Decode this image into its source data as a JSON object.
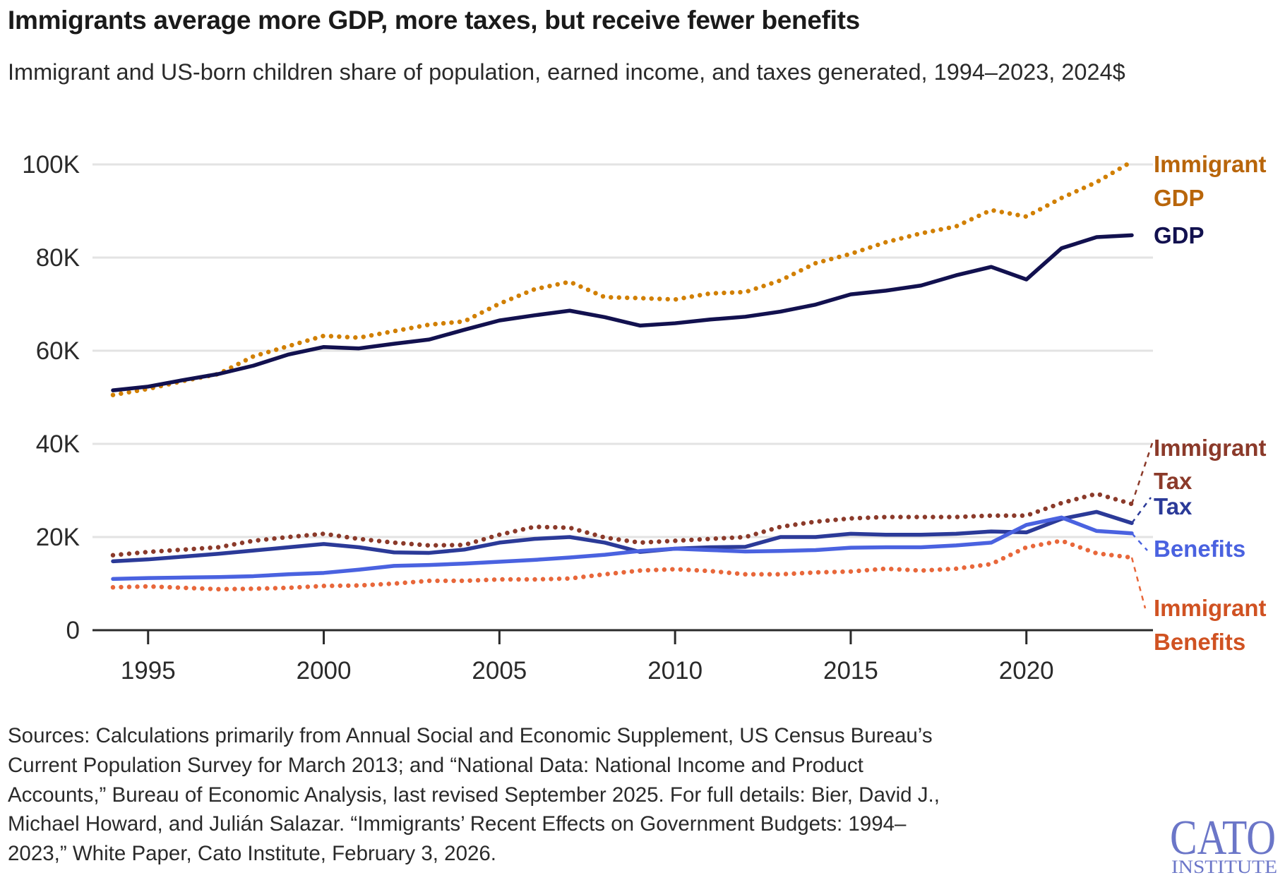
{
  "title": "Immigrants average more GDP, more taxes, but receive fewer benefits",
  "subtitle": "Immigrant and US-born children share of population, earned income, and taxes generated, 1994–2023, 2024$",
  "chart_data": {
    "type": "line",
    "title": "Immigrants average more GDP, more taxes, but receive fewer benefits",
    "subtitle": "Immigrant and US-born children share of population, earned income, and taxes generated, 1994–2023, 2024$",
    "xlabel": "",
    "ylabel": "",
    "x": [
      1994,
      1995,
      1996,
      1997,
      1998,
      1999,
      2000,
      2001,
      2002,
      2003,
      2004,
      2005,
      2006,
      2007,
      2008,
      2009,
      2010,
      2011,
      2012,
      2013,
      2014,
      2015,
      2016,
      2017,
      2018,
      2019,
      2020,
      2021,
      2022,
      2023
    ],
    "xlim": [
      1994,
      2023
    ],
    "ylim": [
      0,
      100000
    ],
    "x_ticks": [
      "1995",
      "2000",
      "2005",
      "2010",
      "2015",
      "2020"
    ],
    "y_ticks": [
      {
        "value": 0,
        "label": "0"
      },
      {
        "value": 20000,
        "label": "20K"
      },
      {
        "value": 40000,
        "label": "40K"
      },
      {
        "value": 60000,
        "label": "60K"
      },
      {
        "value": 80000,
        "label": "80K"
      },
      {
        "value": 100000,
        "label": "100K"
      }
    ],
    "grid": true,
    "legend": "direct labels at right",
    "series": [
      {
        "name": "Immigrant GDP",
        "label_lines": [
          "Immigrant",
          "GDP"
        ],
        "color": "#d17f00",
        "label_color": "#b8650a",
        "style": "dotted",
        "values": [
          50500,
          51800,
          53500,
          55000,
          58800,
          61000,
          63200,
          62800,
          64200,
          65600,
          66300,
          70100,
          73200,
          74800,
          71500,
          71300,
          71000,
          72300,
          72600,
          75100,
          78800,
          80800,
          83300,
          85200,
          86700,
          90200,
          88800,
          92800,
          96200,
          100600
        ]
      },
      {
        "name": "GDP",
        "label_lines": [
          "GDP"
        ],
        "color": "#12114f",
        "label_color": "#12114f",
        "style": "solid",
        "values": [
          51500,
          52300,
          53700,
          55000,
          56800,
          59200,
          60800,
          60500,
          61500,
          62400,
          64500,
          66500,
          67600,
          68600,
          67200,
          65400,
          65900,
          66700,
          67300,
          68400,
          69900,
          72100,
          72900,
          74000,
          76200,
          78000,
          75300,
          82000,
          84400,
          84800
        ]
      },
      {
        "name": "Immigrant Tax",
        "label_lines": [
          "Immigrant",
          "Tax"
        ],
        "color": "#8b3a2a",
        "label_color": "#8b3a2a",
        "style": "dotted",
        "values": [
          16100,
          16800,
          17300,
          17800,
          19200,
          20000,
          20700,
          19600,
          18800,
          18200,
          18300,
          20500,
          22200,
          22000,
          19900,
          18800,
          19200,
          19600,
          20000,
          22200,
          23300,
          24000,
          24300,
          24300,
          24300,
          24600,
          24600,
          27300,
          29300,
          27100
        ]
      },
      {
        "name": "Tax",
        "label_lines": [
          "Tax"
        ],
        "color": "#2b3a98",
        "label_color": "#2b3a98",
        "style": "solid",
        "values": [
          14800,
          15200,
          15800,
          16400,
          17100,
          17800,
          18500,
          17800,
          16700,
          16600,
          17300,
          18800,
          19600,
          20000,
          18800,
          16800,
          17500,
          17800,
          17900,
          20000,
          20000,
          20700,
          20500,
          20500,
          20700,
          21200,
          21000,
          23900,
          25400,
          23000
        ]
      },
      {
        "name": "Benefits",
        "label_lines": [
          "Benefits"
        ],
        "color": "#4a62e0",
        "label_color": "#4a62e0",
        "style": "solid",
        "values": [
          11000,
          11200,
          11300,
          11400,
          11600,
          12000,
          12300,
          13000,
          13800,
          14000,
          14300,
          14700,
          15100,
          15600,
          16200,
          17000,
          17500,
          17200,
          16900,
          17000,
          17200,
          17700,
          17800,
          17800,
          18200,
          18800,
          22600,
          24200,
          21300,
          20800
        ]
      },
      {
        "name": "Immigrant Benefits",
        "label_lines": [
          "Immigrant",
          "Benefits"
        ],
        "color": "#e8673a",
        "label_color": "#d05222",
        "style": "dotted",
        "values": [
          9200,
          9400,
          9100,
          8800,
          8900,
          9100,
          9500,
          9600,
          10000,
          10600,
          10600,
          10900,
          10900,
          11100,
          12000,
          12800,
          13100,
          12700,
          12000,
          12000,
          12400,
          12600,
          13200,
          12800,
          13200,
          14200,
          17800,
          19200,
          16500,
          15600
        ]
      }
    ]
  },
  "sources_lines": [
    "Sources: Calculations primarily from Annual Social and Economic Supplement, US Census Bureau’s",
    "Current Population Survey for March 2013; and “National Data: National Income and Product",
    "Accounts,” Bureau of Economic Analysis, last revised September 2025. For full details: Bier, David J.,",
    "Michael Howard, and Julián Salazar. “Immigrants’ Recent Effects on Government Budgets: 1994–",
    "2023,” White Paper, Cato Institute, February 3, 2026."
  ],
  "logo": {
    "line1": "CATO",
    "line2": "INSTITUTE",
    "color": "#6b76c8"
  }
}
